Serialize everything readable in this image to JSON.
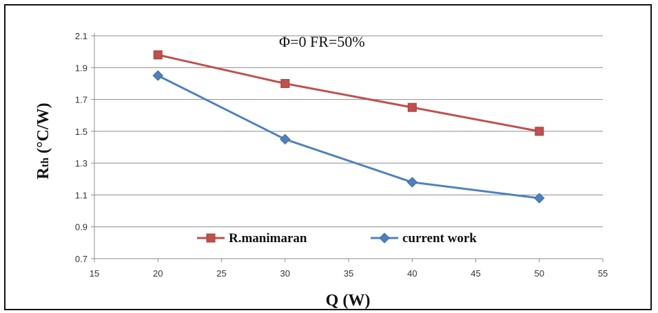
{
  "chart_data": {
    "type": "line",
    "title": "",
    "annotation": "Φ=0   FR=50%",
    "xlabel": "Q (W)",
    "ylabel_main": "R",
    "ylabel_sub": "th",
    "ylabel_rest": " (°C/W)",
    "xlim": [
      15,
      55
    ],
    "ylim": [
      0.7,
      2.1
    ],
    "xticks": [
      15,
      20,
      25,
      30,
      35,
      40,
      45,
      50,
      55
    ],
    "yticks": [
      0.7,
      0.9,
      1.1,
      1.3,
      1.5,
      1.7,
      1.9,
      2.1
    ],
    "grid": "horizontal",
    "legend_position": "bottom-center",
    "series": [
      {
        "name": "R.manimaran",
        "color": "#c0504d",
        "marker": "square",
        "x": [
          20,
          30,
          40,
          50
        ],
        "y": [
          1.98,
          1.8,
          1.65,
          1.5
        ]
      },
      {
        "name": "current work",
        "color": "#4f81bd",
        "marker": "diamond",
        "x": [
          20,
          30,
          40,
          50
        ],
        "y": [
          1.85,
          1.45,
          1.18,
          1.08
        ]
      }
    ]
  }
}
